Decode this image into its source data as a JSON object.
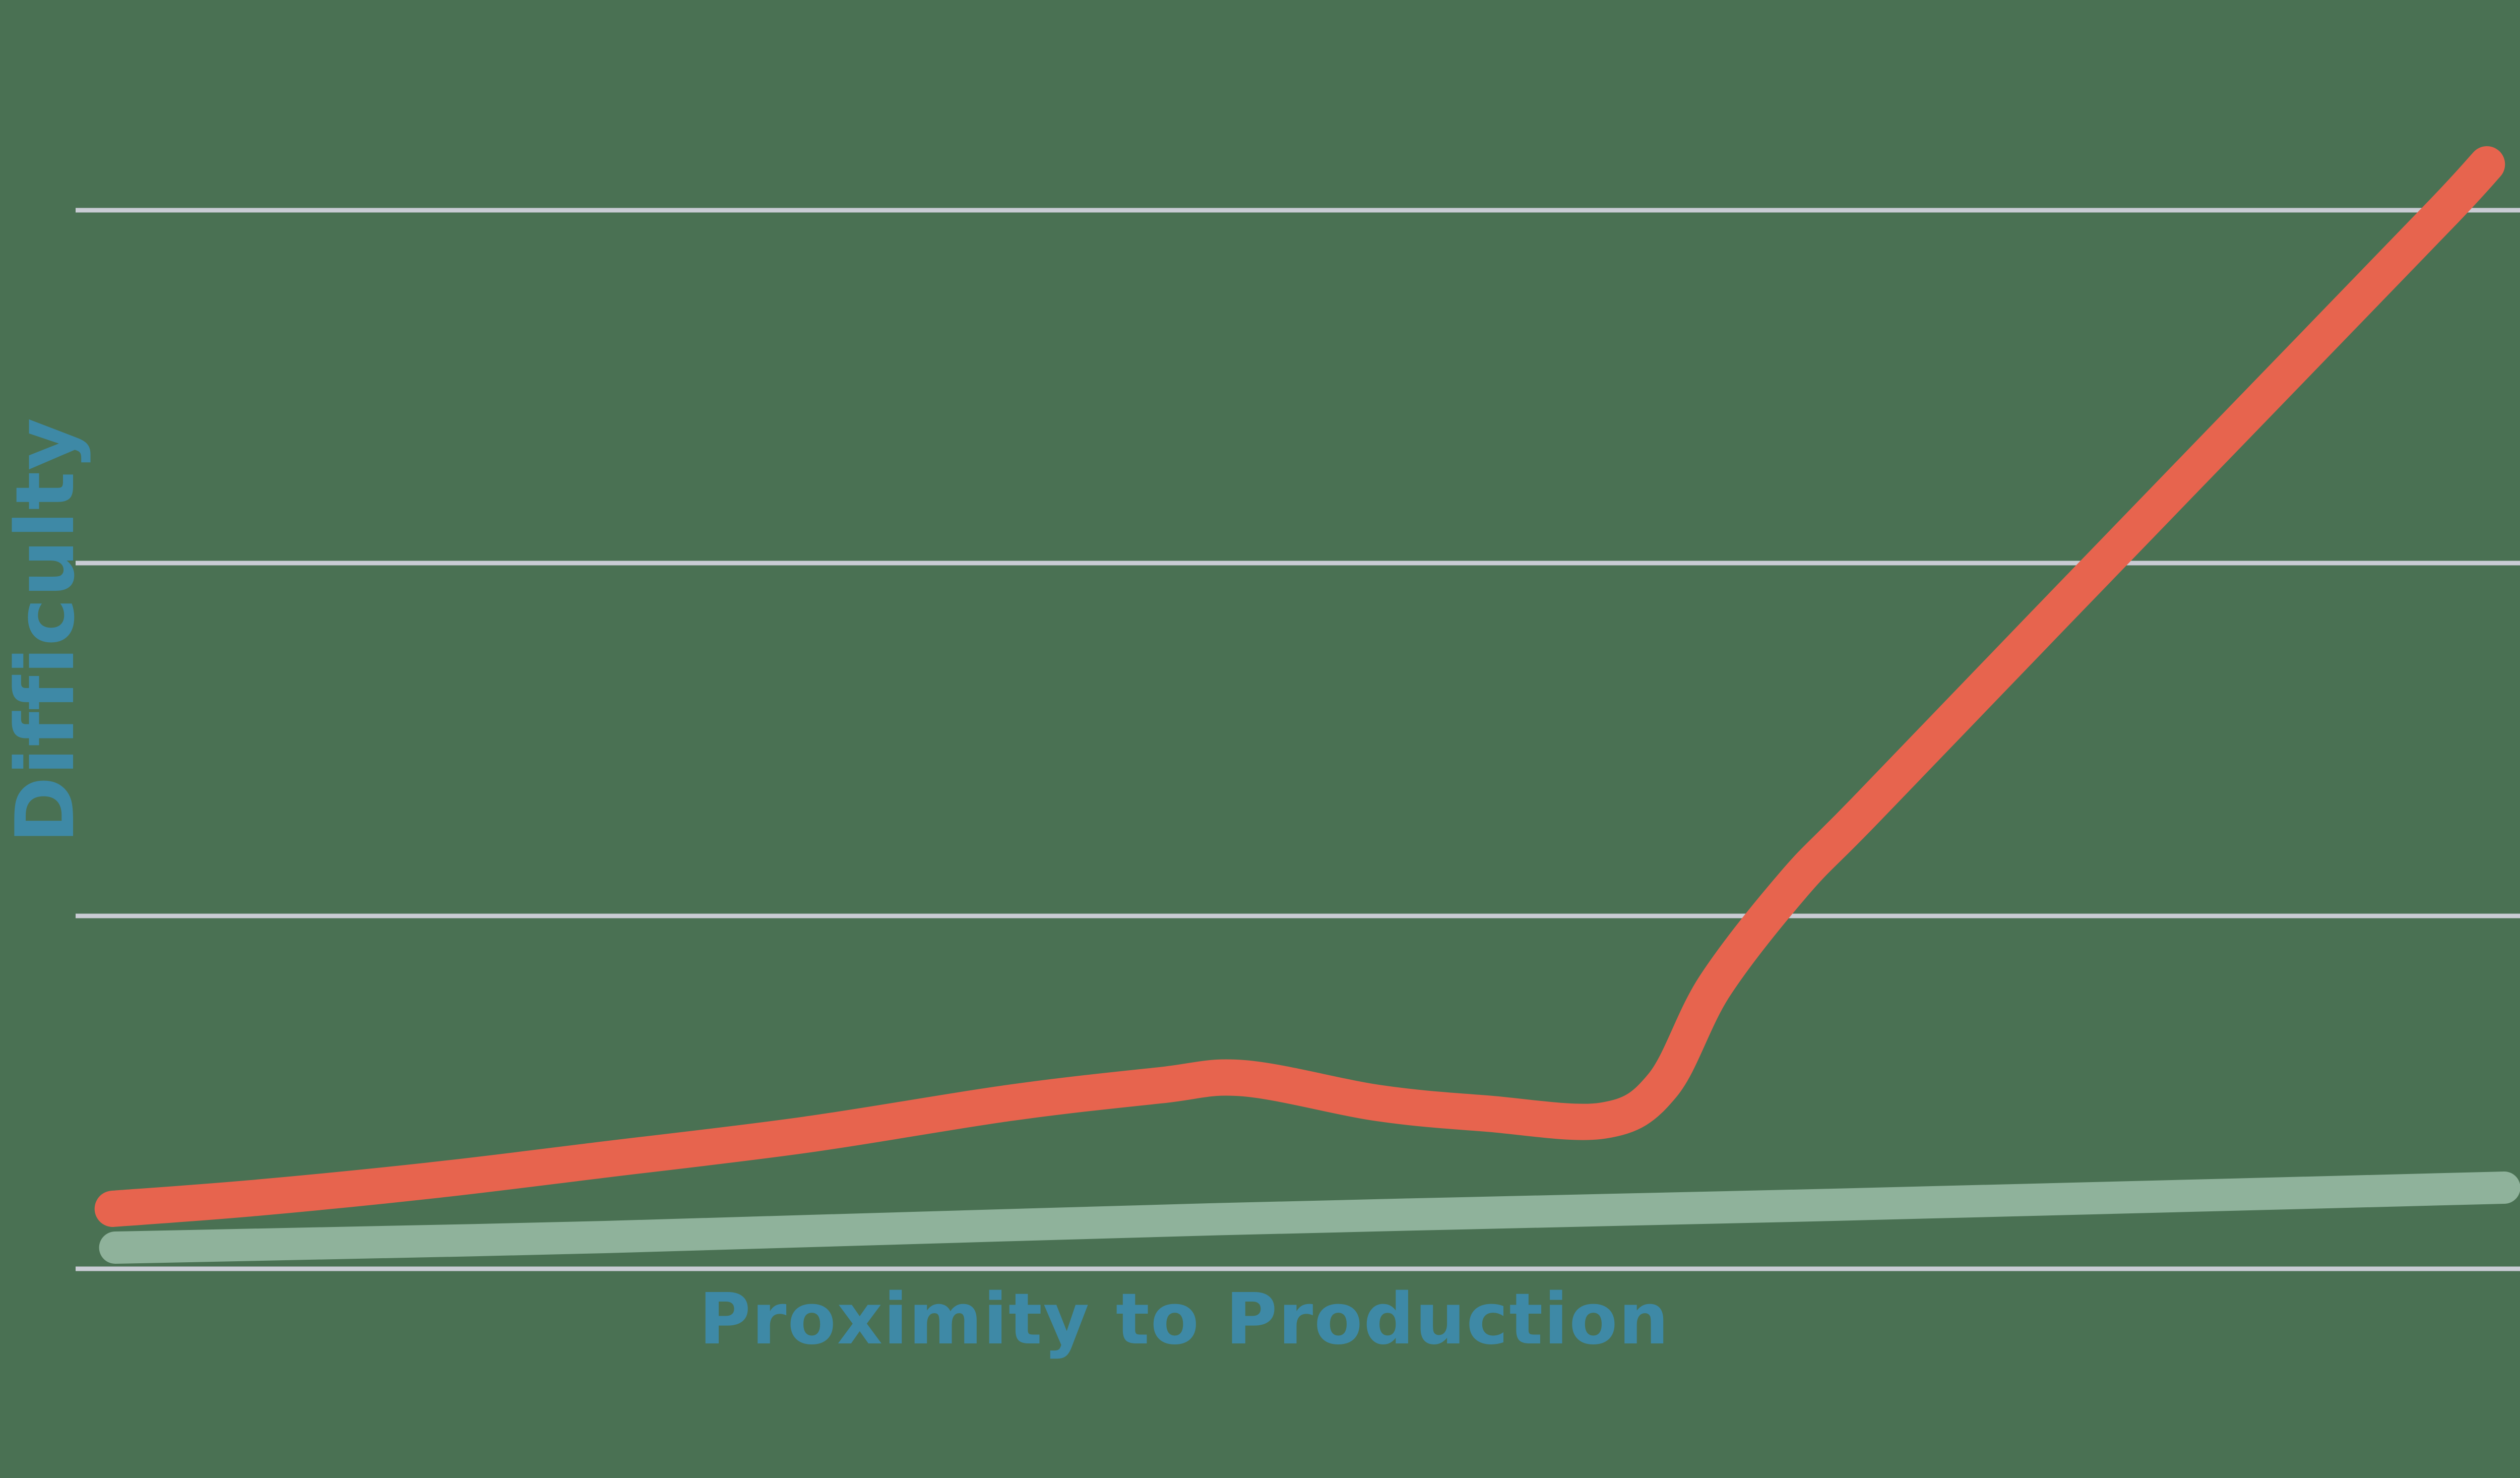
{
  "axes": {
    "y_label": "Difficulty",
    "x_label": "Proximity to Production"
  },
  "colors": {
    "background": "#4A7153",
    "red_line": "#E7644E",
    "green_line": "#8FB29B",
    "axis_label": "#3E89A6",
    "gridline": "#C9CCD4"
  },
  "chart_data": {
    "type": "line",
    "title": "",
    "xlabel": "Proximity to Production",
    "ylabel": "Difficulty",
    "xlim": [
      0,
      100
    ],
    "ylim": [
      0,
      3.2
    ],
    "grid": "horizontal-only",
    "legend": "none",
    "axis_ticks": "none",
    "gridline_values": [
      0,
      1,
      2,
      3
    ],
    "series": [
      {
        "name": "red-line",
        "color_key": "red_line",
        "shape": "rises gently with a small bump, shallow dip, then steep straight climb to top right",
        "points": [
          [
            1.5,
            0.17
          ],
          [
            7.1,
            0.2
          ],
          [
            14.3,
            0.25
          ],
          [
            21.4,
            0.31
          ],
          [
            29.5,
            0.38
          ],
          [
            37.7,
            0.47
          ],
          [
            43.8,
            0.52
          ],
          [
            47.2,
            0.54
          ],
          [
            52.6,
            0.47
          ],
          [
            57.0,
            0.44
          ],
          [
            61.7,
            0.42
          ],
          [
            64.1,
            0.52
          ],
          [
            66.2,
            0.8
          ],
          [
            69.4,
            1.09
          ],
          [
            72.3,
            1.3
          ],
          [
            80.4,
            1.89
          ],
          [
            90.6,
            2.63
          ],
          [
            95.7,
            3.0
          ],
          [
            97.4,
            3.13
          ]
        ]
      },
      {
        "name": "green-line",
        "color_key": "green_line",
        "shape": "nearly flat, very slight linear rise left to right",
        "points": [
          [
            1.6,
            0.06
          ],
          [
            21.4,
            0.09
          ],
          [
            45.8,
            0.14
          ],
          [
            70.2,
            0.18
          ],
          [
            98.1,
            0.23
          ]
        ]
      }
    ]
  }
}
